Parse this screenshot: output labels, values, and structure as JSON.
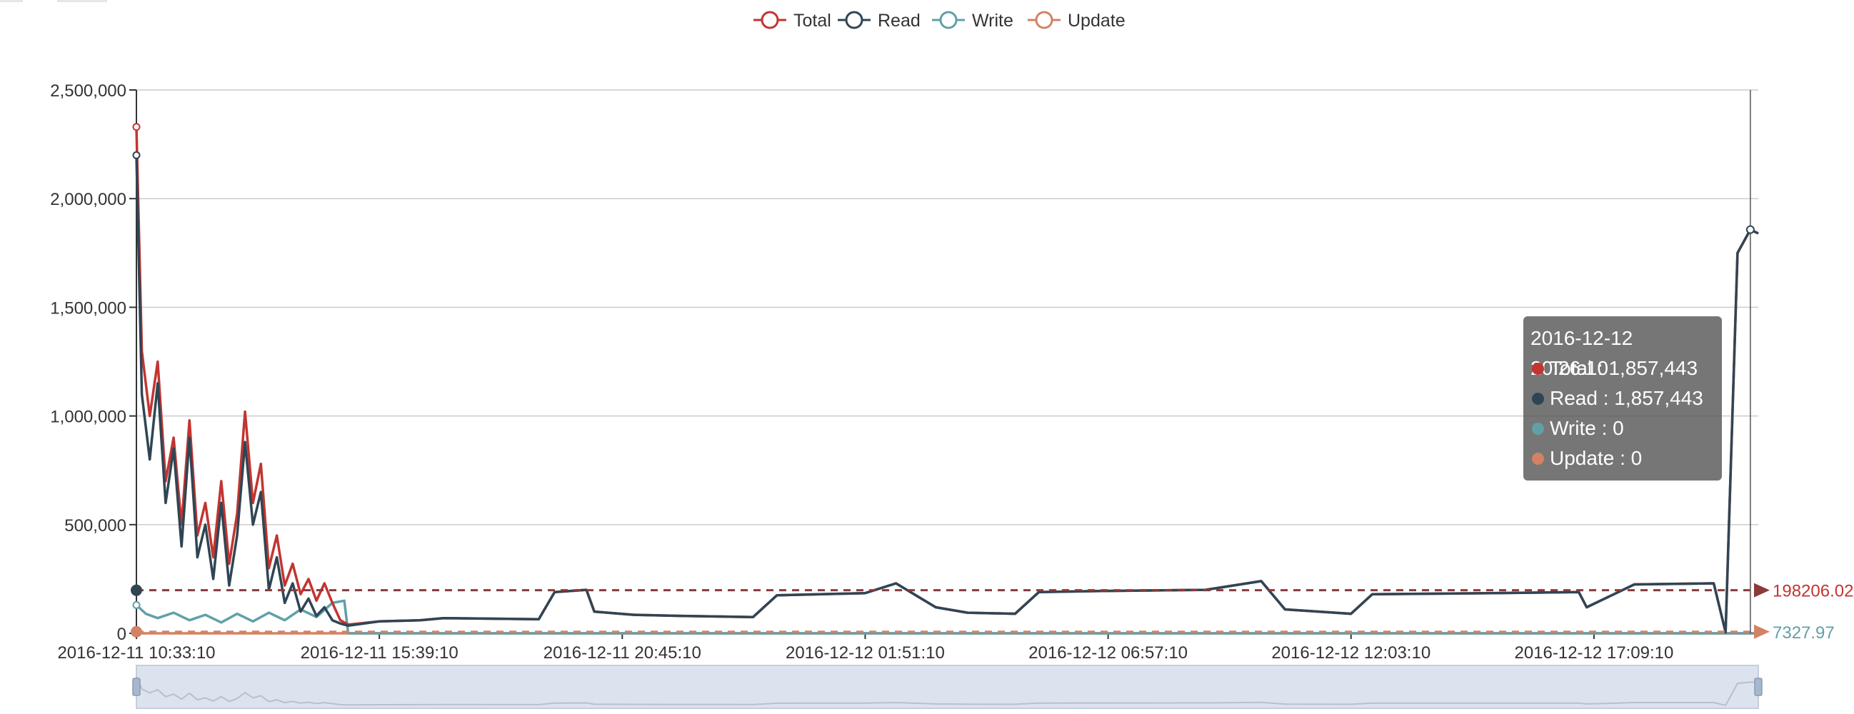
{
  "legend": {
    "items": [
      {
        "name": "Total",
        "color": "#c23531"
      },
      {
        "name": "Read",
        "color": "#2f4554"
      },
      {
        "name": "Write",
        "color": "#61a0a8"
      },
      {
        "name": "Update",
        "color": "#d48265"
      }
    ]
  },
  "tooltip": {
    "title": "2016-12-12 20:26:10",
    "rows": [
      {
        "label": "Total : 1,857,443",
        "color": "#c23531"
      },
      {
        "label": "Read : 1,857,443",
        "color": "#2f4554"
      },
      {
        "label": "Write : 0",
        "color": "#61a0a8"
      },
      {
        "label": "Update : 0",
        "color": "#d48265"
      }
    ]
  },
  "mark_lines": {
    "average_label": "198206.02",
    "lower_label": "7327.97"
  },
  "chart_data": {
    "type": "line",
    "x_tick_labels": [
      "2016-12-11 10:33:10",
      "2016-12-11 15:39:10",
      "2016-12-11 20:45:10",
      "2016-12-12 01:51:10",
      "2016-12-12 06:57:10",
      "2016-12-12 12:03:10",
      "2016-12-12 17:09:10"
    ],
    "xlim": [
      "2016-12-11 10:33:10",
      "2016-12-12 20:36:10"
    ],
    "ylim": [
      0,
      2500000
    ],
    "y_ticks": [
      0,
      500000,
      1000000,
      1500000,
      2000000,
      2500000
    ],
    "y_tick_labels": [
      "0",
      "500,000",
      "1,000,000",
      "1,500,000",
      "2,000,000",
      "2,500,000"
    ],
    "grid": true,
    "legend_position": "top-center",
    "average_line": 198206.02,
    "lower_line": 7327.97,
    "series": [
      {
        "name": "Total",
        "color": "#c23531",
        "points": [
          [
            "2016-12-11 10:33:10",
            2330000
          ],
          [
            "2016-12-11 10:40:00",
            1300000
          ],
          [
            "2016-12-11 10:50:00",
            1000000
          ],
          [
            "2016-12-11 11:00:00",
            1250000
          ],
          [
            "2016-12-11 11:10:00",
            700000
          ],
          [
            "2016-12-11 11:20:00",
            900000
          ],
          [
            "2016-12-11 11:30:00",
            500000
          ],
          [
            "2016-12-11 11:40:00",
            980000
          ],
          [
            "2016-12-11 11:50:00",
            450000
          ],
          [
            "2016-12-11 12:00:00",
            600000
          ],
          [
            "2016-12-11 12:10:00",
            350000
          ],
          [
            "2016-12-11 12:20:00",
            700000
          ],
          [
            "2016-12-11 12:30:00",
            320000
          ],
          [
            "2016-12-11 12:40:00",
            550000
          ],
          [
            "2016-12-11 12:50:00",
            1020000
          ],
          [
            "2016-12-11 13:00:00",
            600000
          ],
          [
            "2016-12-11 13:10:00",
            780000
          ],
          [
            "2016-12-11 13:20:00",
            300000
          ],
          [
            "2016-12-11 13:30:00",
            450000
          ],
          [
            "2016-12-11 13:40:00",
            220000
          ],
          [
            "2016-12-11 13:50:00",
            320000
          ],
          [
            "2016-12-11 14:00:00",
            180000
          ],
          [
            "2016-12-11 14:10:00",
            250000
          ],
          [
            "2016-12-11 14:20:00",
            150000
          ],
          [
            "2016-12-11 14:30:00",
            230000
          ],
          [
            "2016-12-11 14:40:00",
            140000
          ],
          [
            "2016-12-11 14:50:00",
            60000
          ],
          [
            "2016-12-11 15:00:00",
            40000
          ],
          [
            "2016-12-11 15:39:10",
            55000
          ],
          [
            "2016-12-11 16:30:00",
            60000
          ],
          [
            "2016-12-11 17:00:00",
            70000
          ],
          [
            "2016-12-11 19:00:00",
            65000
          ],
          [
            "2016-12-11 19:20:00",
            190000
          ],
          [
            "2016-12-11 20:00:00",
            200000
          ],
          [
            "2016-12-11 20:10:00",
            100000
          ],
          [
            "2016-12-11 21:00:00",
            85000
          ],
          [
            "2016-12-11 22:00:00",
            80000
          ],
          [
            "2016-12-11 23:30:00",
            75000
          ],
          [
            "2016-12-12 00:00:00",
            175000
          ],
          [
            "2016-12-12 01:51:10",
            185000
          ],
          [
            "2016-12-12 02:30:00",
            230000
          ],
          [
            "2016-12-12 03:20:00",
            120000
          ],
          [
            "2016-12-12 04:00:00",
            95000
          ],
          [
            "2016-12-12 05:00:00",
            90000
          ],
          [
            "2016-12-12 05:30:00",
            190000
          ],
          [
            "2016-12-12 06:57:10",
            195000
          ],
          [
            "2016-12-12 09:00:00",
            200000
          ],
          [
            "2016-12-12 10:10:00",
            240000
          ],
          [
            "2016-12-12 10:40:00",
            110000
          ],
          [
            "2016-12-12 12:03:10",
            90000
          ],
          [
            "2016-12-12 12:30:00",
            180000
          ],
          [
            "2016-12-12 15:00:00",
            185000
          ],
          [
            "2016-12-12 16:50:00",
            190000
          ],
          [
            "2016-12-12 17:00:00",
            120000
          ],
          [
            "2016-12-12 17:40:00",
            190000
          ],
          [
            "2016-12-12 18:00:00",
            225000
          ],
          [
            "2016-12-12 19:40:00",
            230000
          ],
          [
            "2016-12-12 19:55:00",
            5000
          ],
          [
            "2016-12-12 20:10:00",
            1750000
          ],
          [
            "2016-12-12 20:26:10",
            1857443
          ],
          [
            "2016-12-12 20:36:10",
            1840000
          ]
        ]
      },
      {
        "name": "Read",
        "color": "#2f4554",
        "points": [
          [
            "2016-12-11 10:33:10",
            2200000
          ],
          [
            "2016-12-11 10:40:00",
            1100000
          ],
          [
            "2016-12-11 10:50:00",
            800000
          ],
          [
            "2016-12-11 11:00:00",
            1150000
          ],
          [
            "2016-12-11 11:10:00",
            600000
          ],
          [
            "2016-12-11 11:20:00",
            850000
          ],
          [
            "2016-12-11 11:30:00",
            400000
          ],
          [
            "2016-12-11 11:40:00",
            900000
          ],
          [
            "2016-12-11 11:50:00",
            350000
          ],
          [
            "2016-12-11 12:00:00",
            500000
          ],
          [
            "2016-12-11 12:10:00",
            250000
          ],
          [
            "2016-12-11 12:20:00",
            600000
          ],
          [
            "2016-12-11 12:30:00",
            220000
          ],
          [
            "2016-12-11 12:40:00",
            450000
          ],
          [
            "2016-12-11 12:50:00",
            880000
          ],
          [
            "2016-12-11 13:00:00",
            500000
          ],
          [
            "2016-12-11 13:10:00",
            650000
          ],
          [
            "2016-12-11 13:20:00",
            200000
          ],
          [
            "2016-12-11 13:30:00",
            350000
          ],
          [
            "2016-12-11 13:40:00",
            140000
          ],
          [
            "2016-12-11 13:50:00",
            230000
          ],
          [
            "2016-12-11 14:00:00",
            100000
          ],
          [
            "2016-12-11 14:10:00",
            160000
          ],
          [
            "2016-12-11 14:20:00",
            80000
          ],
          [
            "2016-12-11 14:30:00",
            120000
          ],
          [
            "2016-12-11 14:40:00",
            60000
          ],
          [
            "2016-12-11 14:50:00",
            45000
          ],
          [
            "2016-12-11 15:00:00",
            35000
          ],
          [
            "2016-12-11 15:39:10",
            55000
          ],
          [
            "2016-12-11 16:30:00",
            60000
          ],
          [
            "2016-12-11 17:00:00",
            70000
          ],
          [
            "2016-12-11 19:00:00",
            65000
          ],
          [
            "2016-12-11 19:20:00",
            190000
          ],
          [
            "2016-12-11 20:00:00",
            200000
          ],
          [
            "2016-12-11 20:10:00",
            100000
          ],
          [
            "2016-12-11 21:00:00",
            85000
          ],
          [
            "2016-12-11 22:00:00",
            80000
          ],
          [
            "2016-12-11 23:30:00",
            75000
          ],
          [
            "2016-12-12 00:00:00",
            175000
          ],
          [
            "2016-12-12 01:51:10",
            185000
          ],
          [
            "2016-12-12 02:30:00",
            230000
          ],
          [
            "2016-12-12 03:20:00",
            120000
          ],
          [
            "2016-12-12 04:00:00",
            95000
          ],
          [
            "2016-12-12 05:00:00",
            90000
          ],
          [
            "2016-12-12 05:30:00",
            190000
          ],
          [
            "2016-12-12 06:57:10",
            195000
          ],
          [
            "2016-12-12 09:00:00",
            200000
          ],
          [
            "2016-12-12 10:10:00",
            240000
          ],
          [
            "2016-12-12 10:40:00",
            110000
          ],
          [
            "2016-12-12 12:03:10",
            90000
          ],
          [
            "2016-12-12 12:30:00",
            180000
          ],
          [
            "2016-12-12 15:00:00",
            185000
          ],
          [
            "2016-12-12 16:50:00",
            190000
          ],
          [
            "2016-12-12 17:00:00",
            120000
          ],
          [
            "2016-12-12 17:40:00",
            190000
          ],
          [
            "2016-12-12 18:00:00",
            225000
          ],
          [
            "2016-12-12 19:40:00",
            230000
          ],
          [
            "2016-12-12 19:55:00",
            5000
          ],
          [
            "2016-12-12 20:10:00",
            1750000
          ],
          [
            "2016-12-12 20:26:10",
            1857443
          ],
          [
            "2016-12-12 20:36:10",
            1840000
          ]
        ]
      },
      {
        "name": "Write",
        "color": "#61a0a8",
        "points": [
          [
            "2016-12-11 10:33:10",
            130000
          ],
          [
            "2016-12-11 10:45:00",
            90000
          ],
          [
            "2016-12-11 11:00:00",
            70000
          ],
          [
            "2016-12-11 11:20:00",
            95000
          ],
          [
            "2016-12-11 11:40:00",
            60000
          ],
          [
            "2016-12-11 12:00:00",
            85000
          ],
          [
            "2016-12-11 12:20:00",
            50000
          ],
          [
            "2016-12-11 12:40:00",
            90000
          ],
          [
            "2016-12-11 13:00:00",
            55000
          ],
          [
            "2016-12-11 13:20:00",
            95000
          ],
          [
            "2016-12-11 13:40:00",
            60000
          ],
          [
            "2016-12-11 14:00:00",
            110000
          ],
          [
            "2016-12-11 14:20:00",
            75000
          ],
          [
            "2016-12-11 14:40:00",
            140000
          ],
          [
            "2016-12-11 14:55:00",
            150000
          ],
          [
            "2016-12-11 15:00:00",
            0
          ],
          [
            "2016-12-12 20:36:10",
            0
          ]
        ]
      },
      {
        "name": "Update",
        "color": "#d48265",
        "points": [
          [
            "2016-12-11 10:33:10",
            0
          ],
          [
            "2016-12-12 20:36:10",
            0
          ]
        ]
      }
    ]
  }
}
